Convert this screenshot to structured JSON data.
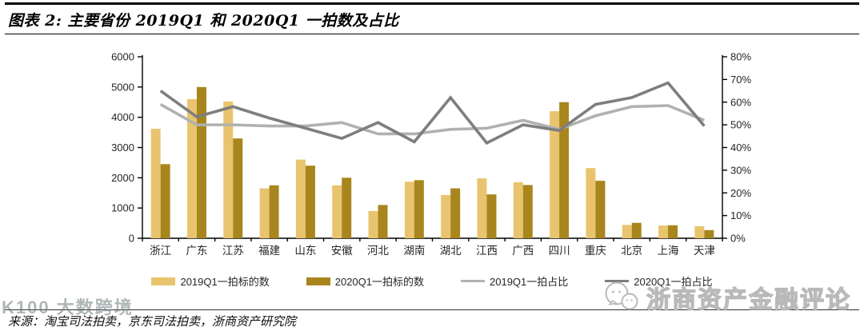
{
  "header": {
    "title": "图表 2: 主要省份 2019Q1 和 2020Q1 一拍数及占比"
  },
  "chart_data": {
    "type": "bar",
    "subtype": "grouped bars with two overlay lines (dual axis)",
    "categories": [
      "浙江",
      "广东",
      "江苏",
      "福建",
      "山东",
      "安徽",
      "河北",
      "湖南",
      "湖北",
      "江西",
      "广西",
      "四川",
      "重庆",
      "北京",
      "上海",
      "天津"
    ],
    "series": [
      {
        "name": "2019Q1一拍标的数",
        "type": "bar",
        "axis": "left",
        "color": "#E9C46E",
        "values": [
          3620,
          4600,
          4520,
          1650,
          2600,
          1750,
          900,
          1870,
          1430,
          1980,
          1850,
          4200,
          2320,
          440,
          420,
          400
        ]
      },
      {
        "name": "2020Q1一拍标的数",
        "type": "bar",
        "axis": "left",
        "color": "#A8861D",
        "values": [
          2450,
          5000,
          3300,
          1750,
          2400,
          2000,
          1100,
          1920,
          1650,
          1450,
          1760,
          4500,
          1900,
          510,
          430,
          270
        ]
      },
      {
        "name": "2019Q1一拍占比",
        "type": "line",
        "axis": "right",
        "color": "#B1B1B1",
        "values": [
          59,
          50,
          50,
          49.5,
          49.5,
          51,
          46,
          46,
          48,
          48.5,
          52,
          48,
          54,
          58,
          58.5,
          52
        ]
      },
      {
        "name": "2020Q1一拍占比",
        "type": "line",
        "axis": "right",
        "color": "#7E7E7E",
        "values": [
          65,
          53.5,
          58,
          53,
          48.5,
          44,
          51,
          42.5,
          62,
          42,
          50,
          47.5,
          59,
          62,
          68.5,
          49.5
        ]
      }
    ],
    "left_axis": {
      "min": 0,
      "max": 6000,
      "step": 1000,
      "tick_labels": [
        "0",
        "1000",
        "2000",
        "3000",
        "4000",
        "5000",
        "6000"
      ]
    },
    "right_axis": {
      "min": 0,
      "max": 80,
      "step": 10,
      "tick_labels": [
        "0%",
        "10%",
        "20%",
        "30%",
        "40%",
        "50%",
        "60%",
        "70%",
        "80%"
      ]
    },
    "grid": false,
    "legend_position": "bottom"
  },
  "footer": {
    "source": "来源：淘宝司法拍卖，京东司法拍卖，浙商资产研究院"
  },
  "watermarks": {
    "bottom_left": "K100 大数跨境",
    "bottom_right": "浙商资产金融评论"
  }
}
